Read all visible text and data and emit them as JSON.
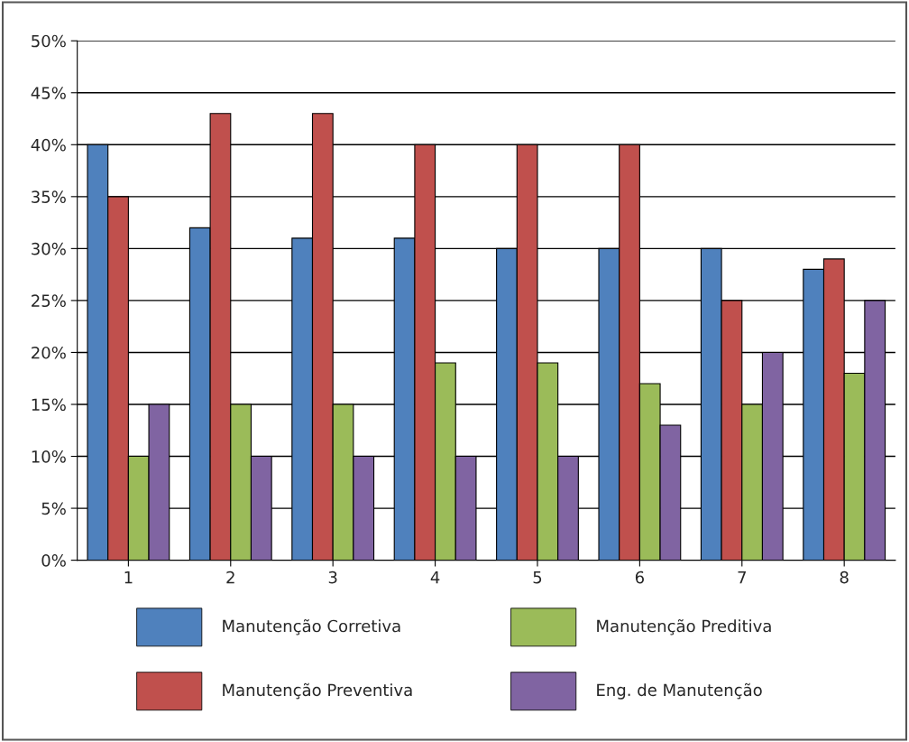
{
  "chart_data": {
    "type": "bar",
    "categories": [
      "1",
      "2",
      "3",
      "4",
      "5",
      "6",
      "7",
      "8"
    ],
    "series": [
      {
        "name": "Manutenção Corretiva",
        "color": "#4f81bd",
        "values": [
          40,
          32,
          31,
          31,
          30,
          30,
          30,
          28
        ]
      },
      {
        "name": "Manutenção Preventiva",
        "color": "#c0504d",
        "values": [
          35,
          43,
          43,
          40,
          40,
          40,
          25,
          29
        ]
      },
      {
        "name": "Manutenção Preditiva",
        "color": "#9bbb59",
        "values": [
          10,
          15,
          15,
          19,
          19,
          17,
          15,
          18
        ]
      },
      {
        "name": "Eng. de Manutenção",
        "color": "#8064a2",
        "values": [
          15,
          10,
          10,
          10,
          10,
          13,
          20,
          25
        ]
      }
    ],
    "ylim": [
      0,
      50
    ],
    "yticks": [
      {
        "value": 0,
        "label": "0%"
      },
      {
        "value": 5,
        "label": "5%"
      },
      {
        "value": 10,
        "label": "10%"
      },
      {
        "value": 15,
        "label": "15%"
      },
      {
        "value": 20,
        "label": "20%"
      },
      {
        "value": 25,
        "label": "25%"
      },
      {
        "value": 30,
        "label": "30%"
      },
      {
        "value": 35,
        "label": "35%"
      },
      {
        "value": 40,
        "label": "40%"
      },
      {
        "value": 45,
        "label": "45%"
      },
      {
        "value": 50,
        "label": "50%"
      }
    ],
    "grid": "y",
    "legend": "bottom"
  }
}
